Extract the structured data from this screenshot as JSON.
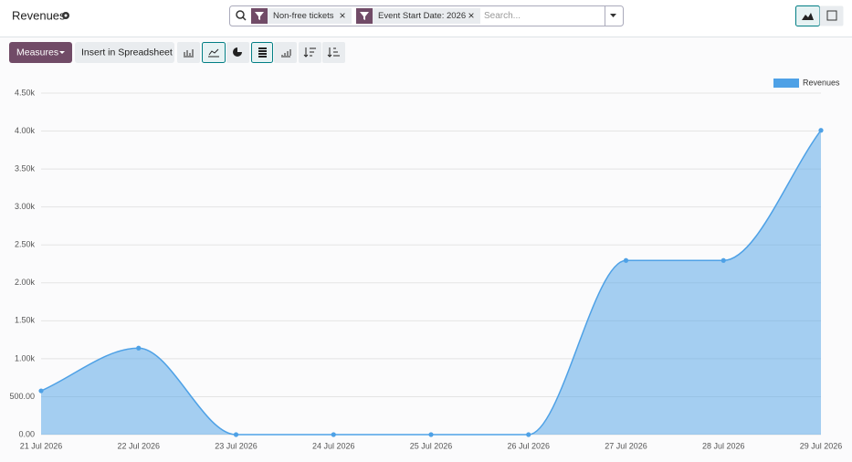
{
  "header": {
    "title": "Revenues"
  },
  "search": {
    "facets": [
      "Non-free tickets",
      "Event Start Date: 2026"
    ],
    "placeholder": "Search..."
  },
  "toolbar": {
    "buttons": [
      "Measures",
      "Insert in Spreadsheet"
    ]
  },
  "chart_data": {
    "type": "line",
    "area": true,
    "legend": "top-right",
    "grid": true,
    "categories": [
      "21 Jul 2026",
      "22 Jul 2026",
      "23 Jul 2026",
      "24 Jul 2026",
      "25 Jul 2026",
      "26 Jul 2026",
      "27 Jul 2026",
      "28 Jul 2026",
      "29 Jul 2026"
    ],
    "series": [
      {
        "name": "Revenues",
        "color": "#4ea1e6",
        "values": [
          577,
          1140,
          0,
          0,
          0,
          0,
          2295,
          2295,
          4010
        ]
      }
    ],
    "ylim": [
      0,
      4500
    ],
    "yticks": [
      {
        "value": 0,
        "label": "0.00"
      },
      {
        "value": 500,
        "label": "500.00"
      },
      {
        "value": 1000,
        "label": "1.00k"
      },
      {
        "value": 1500,
        "label": "1.50k"
      },
      {
        "value": 2000,
        "label": "2.00k"
      },
      {
        "value": 2500,
        "label": "2.50k"
      },
      {
        "value": 3000,
        "label": "3.00k"
      },
      {
        "value": 3500,
        "label": "3.50k"
      },
      {
        "value": 4000,
        "label": "4.00k"
      },
      {
        "value": 4500,
        "label": "4.50k"
      }
    ]
  }
}
